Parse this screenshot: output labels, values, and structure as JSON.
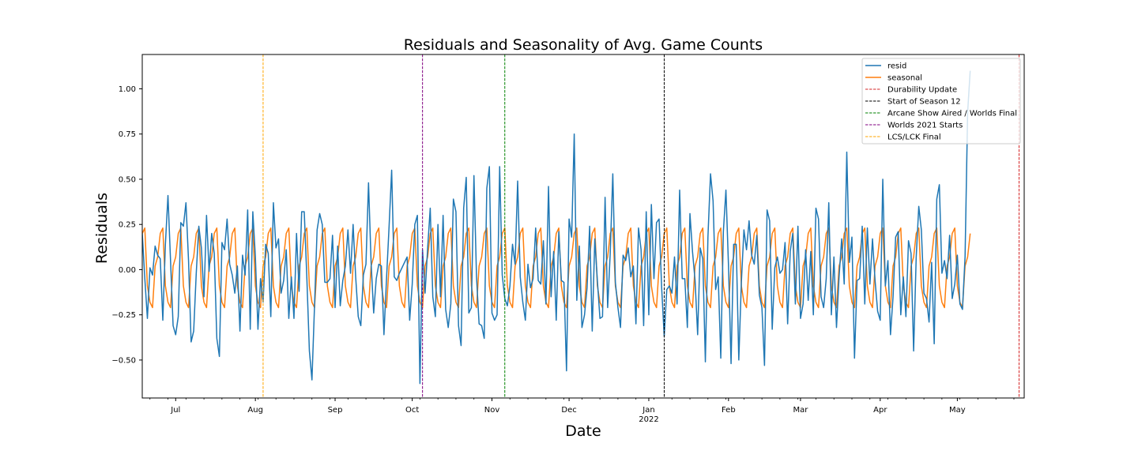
{
  "chart_data": {
    "type": "line",
    "title": "Residuals and Seasonality of Avg. Game Counts",
    "xlabel": "Date",
    "ylabel": "Residuals",
    "xlim": [
      "2021-06-18",
      "2022-05-27"
    ],
    "ylim": [
      -0.71,
      1.19
    ],
    "y_ticks": [
      -0.5,
      -0.25,
      0.0,
      0.25,
      0.5,
      0.75,
      1.0
    ],
    "y_tick_labels": [
      "−0.50",
      "−0.25",
      "0.00",
      "0.25",
      "0.50",
      "0.75",
      "1.00"
    ],
    "x_ticks": [
      {
        "date": "2021-07-01",
        "label": "Jul",
        "sublabel": ""
      },
      {
        "date": "2021-08-01",
        "label": "Aug",
        "sublabel": ""
      },
      {
        "date": "2021-09-01",
        "label": "Sep",
        "sublabel": ""
      },
      {
        "date": "2021-10-01",
        "label": "Oct",
        "sublabel": ""
      },
      {
        "date": "2021-11-01",
        "label": "Nov",
        "sublabel": ""
      },
      {
        "date": "2021-12-01",
        "label": "Dec",
        "sublabel": ""
      },
      {
        "date": "2022-01-01",
        "label": "Jan",
        "sublabel": "2022"
      },
      {
        "date": "2022-02-01",
        "label": "Feb",
        "sublabel": ""
      },
      {
        "date": "2022-03-01",
        "label": "Mar",
        "sublabel": ""
      },
      {
        "date": "2022-04-01",
        "label": "Apr",
        "sublabel": ""
      },
      {
        "date": "2022-05-01",
        "label": "May",
        "sublabel": ""
      }
    ],
    "grid": false,
    "legend_position": "upper right",
    "series": [
      {
        "name": "resid",
        "color": "#1f77b4",
        "style": "solid",
        "start_date": "2021-06-18",
        "values": [
          0.2,
          -0.05,
          -0.27,
          0.01,
          -0.03,
          0.13,
          0.08,
          0.06,
          -0.28,
          0.14,
          0.41,
          0.05,
          -0.31,
          -0.36,
          -0.26,
          0.26,
          0.24,
          0.37,
          0.05,
          -0.4,
          -0.34,
          -0.02,
          0.24,
          0.12,
          -0.15,
          0.3,
          -0.01,
          0.2,
          0.09,
          -0.38,
          -0.48,
          0.15,
          0.11,
          0.28,
          0.03,
          -0.03,
          -0.13,
          0.02,
          -0.34,
          0.08,
          -0.03,
          0.33,
          -0.33,
          0.32,
          0.07,
          -0.33,
          -0.05,
          -0.18,
          0.14,
          0.09,
          -0.26,
          0.37,
          0.12,
          0.17,
          -0.13,
          -0.06,
          0.11,
          -0.27,
          -0.04,
          -0.27,
          0.2,
          -0.12,
          0.32,
          0.32,
          -0.04,
          -0.45,
          -0.61,
          -0.2,
          0.22,
          0.31,
          0.25,
          -0.07,
          -0.07,
          -0.05,
          0.19,
          -0.21,
          0.13,
          -0.2,
          -0.06,
          0.02,
          0.22,
          -0.02,
          0.25,
          -0.04,
          -0.26,
          -0.31,
          -0.03,
          0.03,
          0.48,
          0.04,
          -0.24,
          -0.05,
          0.03,
          0.02,
          -0.36,
          -0.05,
          0.24,
          0.55,
          -0.04,
          -0.06,
          -0.02,
          0.01,
          0.04,
          0.07,
          -0.28,
          -0.08,
          0.25,
          0.3,
          -0.63,
          0.11,
          -0.13,
          0.12,
          0.34,
          -0.15,
          -0.26,
          0.25,
          -0.15,
          0.3,
          -0.22,
          -0.32,
          -0.19,
          0.39,
          0.32,
          -0.31,
          -0.42,
          0.34,
          0.51,
          -0.24,
          -0.21,
          0.52,
          -0.04,
          -0.3,
          -0.31,
          -0.38,
          0.45,
          0.57,
          -0.24,
          -0.28,
          -0.25,
          0.57,
          -0.03,
          -0.16,
          -0.2,
          -0.09,
          0.14,
          0.03,
          0.49,
          -0.04,
          -0.18,
          -0.28,
          0.03,
          -0.1,
          -0.05,
          0.23,
          -0.06,
          -0.08,
          0.16,
          -0.19,
          0.46,
          -0.15,
          0.1,
          -0.28,
          0.21,
          -0.06,
          -0.07,
          -0.56,
          0.28,
          0.18,
          0.75,
          -0.17,
          0.13,
          -0.32,
          -0.25,
          -0.1,
          0.24,
          -0.34,
          0.17,
          -0.06,
          -0.27,
          -0.26,
          0.4,
          -0.21,
          0.09,
          0.53,
          -0.07,
          -0.21,
          -0.32,
          0.08,
          0.05,
          0.12,
          -0.04,
          0.02,
          -0.3,
          0.23,
          0.11,
          -0.31,
          0.32,
          -0.25,
          0.36,
          -0.05,
          0.26,
          0.28,
          -0.1,
          -0.37,
          -0.11,
          -0.09,
          -0.13,
          0.07,
          -0.19,
          0.44,
          -0.05,
          -0.05,
          -0.32,
          0.31,
          0.1,
          -0.06,
          -0.36,
          0.12,
          0.06,
          -0.51,
          0.18,
          0.53,
          0.38,
          -0.11,
          -0.04,
          -0.49,
          0.21,
          0.44,
          0.02,
          -0.52,
          0.14,
          0.14,
          -0.5,
          -0.07,
          0.22,
          0.11,
          0.27,
          0.08,
          0.03,
          0.19,
          -0.14,
          -0.21,
          -0.53,
          0.33,
          0.27,
          -0.33,
          0.01,
          0.07,
          -0.02,
          0.0,
          0.15,
          -0.3,
          0.1,
          0.2,
          -0.19,
          0.24,
          -0.27,
          -0.19,
          0.11,
          -0.17,
          0.1,
          -0.25,
          0.34,
          0.28,
          -0.15,
          -0.21,
          -0.05,
          0.37,
          -0.25,
          0.07,
          -0.32,
          -0.04,
          0.17,
          -0.08,
          0.65,
          0.04,
          0.18,
          -0.49,
          -0.06,
          -0.05,
          0.24,
          -0.19,
          0.23,
          -0.08,
          0.17,
          -0.06,
          -0.23,
          -0.28,
          0.5,
          -0.09,
          0.05,
          -0.36,
          -0.15,
          0.18,
          0.21,
          -0.25,
          -0.04,
          -0.26,
          0.16,
          0.09,
          -0.45,
          0.07,
          0.35,
          0.22,
          -0.13,
          -0.16,
          -0.29,
          0.04,
          -0.41,
          0.39,
          0.47,
          -0.02,
          0.05,
          -0.05,
          0.19,
          -0.16,
          -0.08,
          0.08,
          -0.19,
          -0.22,
          0.07,
          0.87,
          1.1
        ]
      },
      {
        "name": "seasonal",
        "color": "#ff7f0e",
        "style": "solid",
        "start_date": "2021-06-18",
        "pattern": [
          0.2,
          0.23,
          -0.09,
          -0.18,
          -0.21,
          0.02,
          0.07
        ]
      }
    ],
    "vlines": [
      {
        "name": "Durability Update",
        "date": "2022-05-25",
        "color": "#d62728",
        "style": "dashed"
      },
      {
        "name": "Start of Season 12",
        "date": "2022-01-07",
        "color": "#000000",
        "style": "dashed"
      },
      {
        "name": "Arcane Show Aired / Worlds Final",
        "date": "2021-11-06",
        "color": "#008000",
        "style": "dashed"
      },
      {
        "name": "Worlds 2021 Starts",
        "date": "2021-10-05",
        "color": "#800080",
        "style": "dashed"
      },
      {
        "name": "LCS/LCK Final",
        "date": "2021-08-04",
        "color": "#ffa500",
        "style": "dashed"
      }
    ]
  }
}
